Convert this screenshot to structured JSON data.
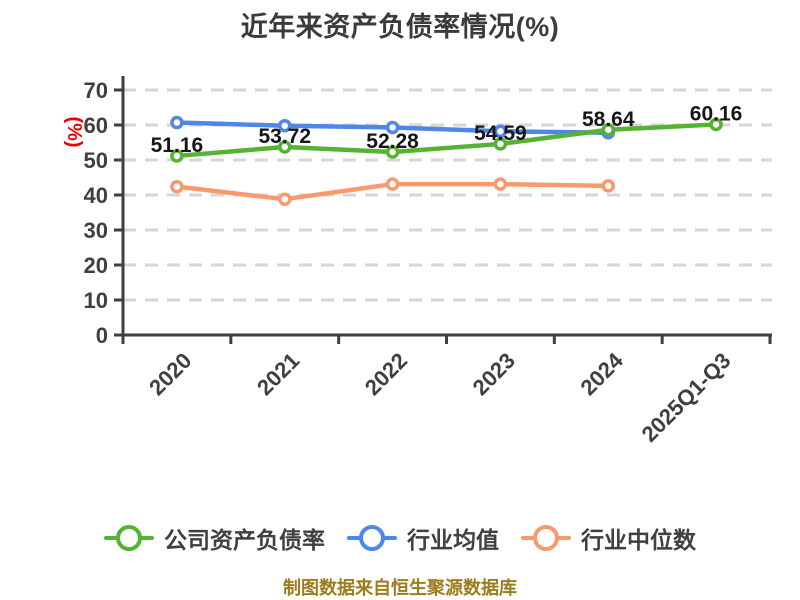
{
  "title": "近年来资产负债率情况(%)",
  "y_axis_unit": "(%)",
  "source_note": "制图数据来自恒生聚源数据库",
  "colors": {
    "title_text": "#3b3b3b",
    "axis": "#3f3f3f",
    "grid": "#d6d6d6",
    "tick_text": "#3f3f3f",
    "data_label_text": "#161616",
    "unit_text": "#ee0000",
    "legend_text": "#404040",
    "source_text": "#9d7c1e",
    "background": "#ffffff"
  },
  "chart_data": {
    "type": "line",
    "title": "近年来资产负债率情况(%)",
    "categories": [
      "2020",
      "2021",
      "2022",
      "2023",
      "2024",
      "2025Q1-Q3"
    ],
    "series": [
      {
        "name": "公司资产负债率",
        "color": "#55b334",
        "values": [
          51.16,
          53.72,
          52.28,
          54.59,
          58.64,
          60.16
        ],
        "data_labels": [
          "51.16",
          "53.72",
          "52.28",
          "54.59",
          "58.64",
          "60.16"
        ]
      },
      {
        "name": "行业均值",
        "color": "#4e86ea",
        "values": [
          60.7,
          59.8,
          59.3,
          58.2,
          57.8,
          null
        ]
      },
      {
        "name": "行业中位数",
        "color": "#f89a6d",
        "values": [
          42.4,
          38.8,
          43.1,
          43.1,
          42.6,
          null
        ]
      }
    ],
    "ylim": [
      0,
      70
    ],
    "yticks": [
      0,
      10,
      20,
      30,
      40,
      50,
      60,
      70
    ],
    "x_tick_rotation": -45,
    "grid": "horizontal-dashed",
    "legend_position": "bottom",
    "marker": "hollow-circle"
  }
}
